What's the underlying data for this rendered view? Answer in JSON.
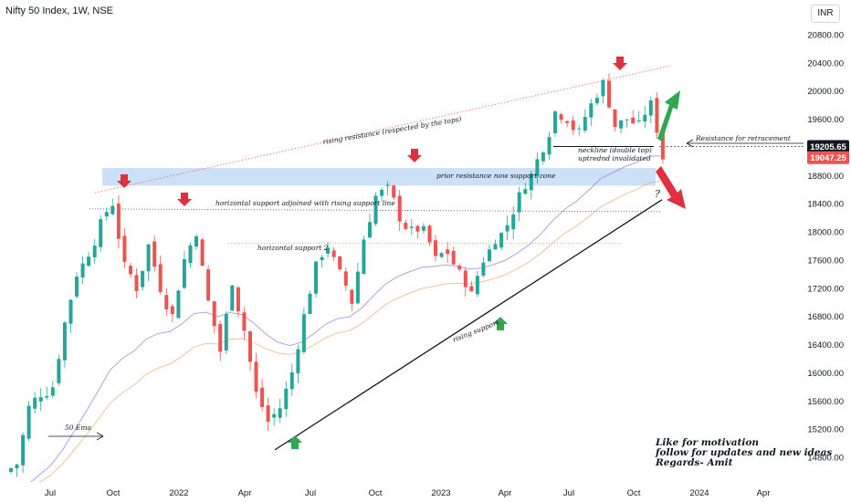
{
  "header": {
    "title": "Nifty 50 Index, 1W, NSE",
    "currency": "INR"
  },
  "colors": {
    "up": "#26a69a",
    "down": "#ef5350",
    "arrow_red": "#e03040",
    "arrow_green": "#2fa84f",
    "zone": "#bbd6f5",
    "ema_blue": "#7e6fdc",
    "ema_orange": "#f0a05a"
  },
  "chart_data": {
    "type": "candlestick",
    "title": "Nifty 50 Index, 1W, NSE",
    "price_axis": {
      "labels": [
        "20800.00",
        "20400.00",
        "20000.00",
        "19600.00",
        "19200.00",
        "18800.00",
        "18400.00",
        "18000.00",
        "17600.00",
        "17200.00",
        "16800.00",
        "16400.00",
        "16000.00",
        "15600.00",
        "15200.00",
        "14800.00"
      ],
      "min": 14600,
      "max": 21050
    },
    "time_axis": {
      "labels": [
        "Jul",
        "Oct",
        "2022",
        "Apr",
        "Jul",
        "Oct",
        "2023",
        "Apr",
        "Jul",
        "Oct",
        "2024",
        "Apr"
      ]
    },
    "price_tags": [
      {
        "value": "19205.65",
        "style": "dark"
      },
      {
        "value": "19047.25",
        "style": "red"
      }
    ],
    "approx_close_path": [
      14700,
      15500,
      15700,
      15800,
      16700,
      17400,
      17700,
      18100,
      18400,
      17500,
      17200,
      17800,
      17200,
      16800,
      17600,
      18000,
      17000,
      16300,
      17300,
      16600,
      15700,
      15300,
      15500,
      16000,
      16800,
      17500,
      17800,
      17400,
      17000,
      17900,
      18500,
      18600,
      18200,
      18000,
      18000,
      17600,
      17700,
      17400,
      17100,
      17600,
      17900,
      18100,
      18500,
      18800,
      19200,
      19700,
      19600,
      19400,
      19800,
      20100,
      19500,
      19600,
      19500,
      19800,
      19047
    ],
    "annotations": {
      "rising_resistance": "rising resistance (respected by the tops)",
      "prior_resistance": "prior resistance now support zone",
      "horizontal_support_1": "horizontal support adjoined with rising support line",
      "horizontal_support_2": "horizontal support 2",
      "neckline_1": "neckline (double top)",
      "neckline_2": "uptrednd invalidated",
      "resistance_retracement": "Resistance for retracement",
      "rising_support": "rising support",
      "ema": "50 Ema",
      "question": "?"
    }
  },
  "note": {
    "line1": "Like for motivation",
    "line2": "follow for updates and new ideas",
    "line3": "Regards- Amit"
  }
}
